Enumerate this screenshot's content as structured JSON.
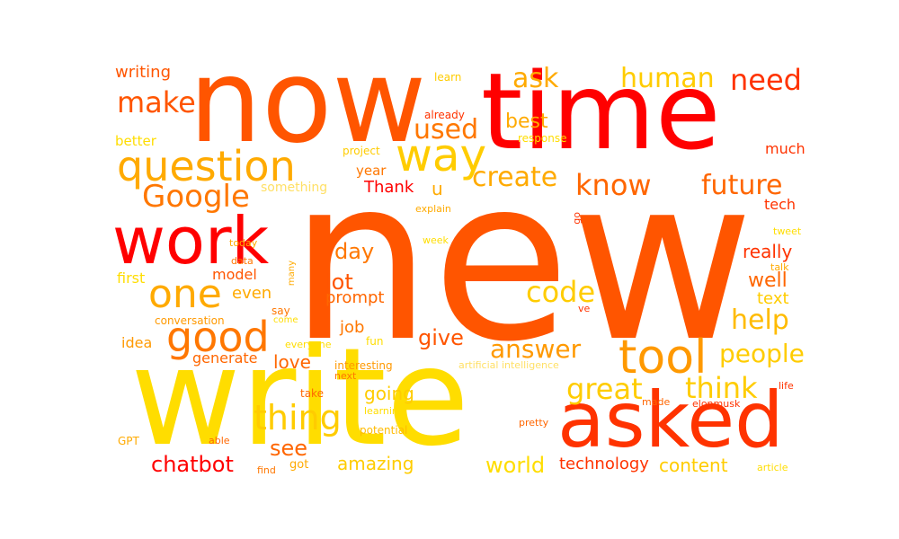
{
  "palette": {
    "red": "#ff0000",
    "red_orange": "#ff3300",
    "orange": "#ff5500",
    "amber": "#ff9900",
    "gold": "#ffbb00",
    "yellow": "#ffdd00",
    "light_yellow": "#ffe066"
  },
  "words": [
    {
      "text": "new",
      "color": "#ff5500"
    },
    {
      "text": "write",
      "color": "#ffdd00"
    },
    {
      "text": "now",
      "color": "#ff5500"
    },
    {
      "text": "time",
      "color": "#ff0000"
    },
    {
      "text": "asked",
      "color": "#ff3300"
    },
    {
      "text": "work",
      "color": "#ff0000"
    },
    {
      "text": "question",
      "color": "#ffaa00"
    },
    {
      "text": "good",
      "color": "#ff7700"
    },
    {
      "text": "one",
      "color": "#ffaa00"
    },
    {
      "text": "way",
      "color": "#ffcc00"
    },
    {
      "text": "tool",
      "color": "#ff9900"
    },
    {
      "text": "Google",
      "color": "#ff7700"
    },
    {
      "text": "thing",
      "color": "#ffcc00"
    },
    {
      "text": "code",
      "color": "#ffcc00"
    },
    {
      "text": "think",
      "color": "#ffcc00"
    },
    {
      "text": "great",
      "color": "#ffcc00"
    },
    {
      "text": "create",
      "color": "#ffaa00"
    },
    {
      "text": "know",
      "color": "#ff6600"
    },
    {
      "text": "answer",
      "color": "#ff9900"
    },
    {
      "text": "future",
      "color": "#ff6600"
    },
    {
      "text": "help",
      "color": "#ffbb00"
    },
    {
      "text": "people",
      "color": "#ffcc00"
    },
    {
      "text": "human",
      "color": "#ffcc00"
    },
    {
      "text": "need",
      "color": "#ff3300"
    },
    {
      "text": "make",
      "color": "#ff5500"
    },
    {
      "text": "used",
      "color": "#ff7700"
    },
    {
      "text": "ask",
      "color": "#ffaa00"
    },
    {
      "text": "chatbot",
      "color": "#ff0000"
    },
    {
      "text": "see",
      "color": "#ff6600"
    },
    {
      "text": "world",
      "color": "#ffdd00"
    },
    {
      "text": "content",
      "color": "#ffcc00"
    },
    {
      "text": "amazing",
      "color": "#ffcc00"
    },
    {
      "text": "give",
      "color": "#ff5500"
    },
    {
      "text": "day",
      "color": "#ff7700"
    },
    {
      "text": "lot",
      "color": "#ff5500"
    },
    {
      "text": "best",
      "color": "#ffaa00"
    },
    {
      "text": "well",
      "color": "#ff6600"
    },
    {
      "text": "really",
      "color": "#ff3300"
    },
    {
      "text": "love",
      "color": "#ff6600"
    },
    {
      "text": "going",
      "color": "#ffcc00"
    },
    {
      "text": "technology",
      "color": "#ff3300"
    },
    {
      "text": "even",
      "color": "#ffaa00"
    },
    {
      "text": "prompt",
      "color": "#ff6600"
    },
    {
      "text": "writing",
      "color": "#ff5500"
    },
    {
      "text": "Thank",
      "color": "#ff0000"
    },
    {
      "text": "u",
      "color": "#ffaa00"
    },
    {
      "text": "job",
      "color": "#ff7700"
    },
    {
      "text": "text",
      "color": "#ffcc00"
    },
    {
      "text": "model",
      "color": "#ff5500"
    },
    {
      "text": "idea",
      "color": "#ff9900"
    },
    {
      "text": "generate",
      "color": "#ff6600"
    },
    {
      "text": "first",
      "color": "#ffdd00"
    },
    {
      "text": "tech",
      "color": "#ff3300"
    },
    {
      "text": "much",
      "color": "#ff3300"
    },
    {
      "text": "better",
      "color": "#ffdd00"
    },
    {
      "text": "year",
      "color": "#ff7700"
    },
    {
      "text": "something",
      "color": "#ffe066"
    },
    {
      "text": "learn",
      "color": "#ffcc00"
    },
    {
      "text": "already",
      "color": "#ff3300"
    },
    {
      "text": "response",
      "color": "#ffdd00"
    },
    {
      "text": "project",
      "color": "#ffcc00"
    },
    {
      "text": "explain",
      "color": "#ffaa00"
    },
    {
      "text": "go",
      "color": "#ff3300"
    },
    {
      "text": "tweet",
      "color": "#ffdd00"
    },
    {
      "text": "talk",
      "color": "#ffaa00"
    },
    {
      "text": "today",
      "color": "#ffaa00"
    },
    {
      "text": "week",
      "color": "#ffdd00"
    },
    {
      "text": "data",
      "color": "#ff7700"
    },
    {
      "text": "many",
      "color": "#ffaa00"
    },
    {
      "text": "conversation",
      "color": "#ff9900"
    },
    {
      "text": "say",
      "color": "#ff7700"
    },
    {
      "text": "come",
      "color": "#ffdd00"
    },
    {
      "text": "ve",
      "color": "#ff3300"
    },
    {
      "text": "fun",
      "color": "#ffdd00"
    },
    {
      "text": "everyone",
      "color": "#ffdd00"
    },
    {
      "text": "interesting",
      "color": "#ff9900"
    },
    {
      "text": "artificial intelligence",
      "color": "#ffe066"
    },
    {
      "text": "next",
      "color": "#ff7700"
    },
    {
      "text": "take",
      "color": "#ff6600"
    },
    {
      "text": "learning",
      "color": "#ffdd00"
    },
    {
      "text": "potential",
      "color": "#ffbb00"
    },
    {
      "text": "made",
      "color": "#ff6600"
    },
    {
      "text": "elonmusk",
      "color": "#ff3300"
    },
    {
      "text": "life",
      "color": "#ff3300"
    },
    {
      "text": "GPT",
      "color": "#ffaa00"
    },
    {
      "text": "able",
      "color": "#ff6600"
    },
    {
      "text": "got",
      "color": "#ffaa00"
    },
    {
      "text": "find",
      "color": "#ff7700"
    },
    {
      "text": "pretty",
      "color": "#ff6600"
    },
    {
      "text": "article",
      "color": "#ffdd00"
    }
  ]
}
